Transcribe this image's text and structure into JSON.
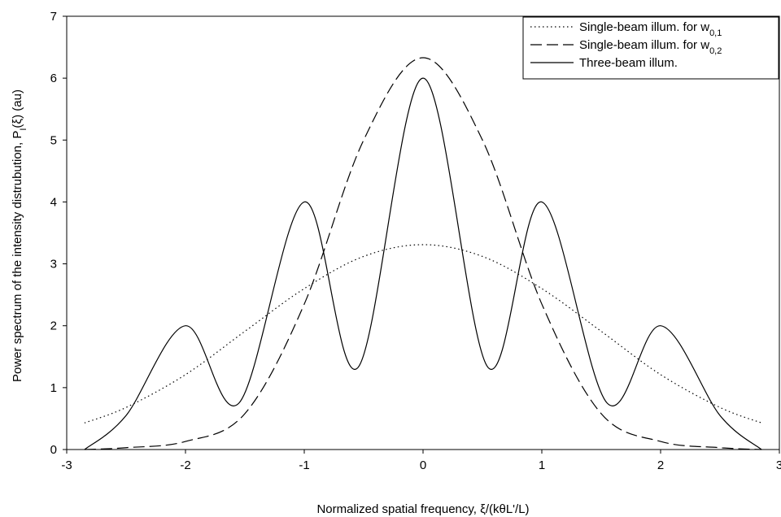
{
  "chart_data": {
    "type": "line",
    "title": "",
    "xlabel": "Normalized spatial frequency, ξ/(kθL'/L)",
    "ylabel": "Power spectrum of the intensity distrubution, P_I(ξ) (au)",
    "xlim": [
      -3,
      3
    ],
    "ylim": [
      0,
      7
    ],
    "xticks": [
      "-3",
      "-2",
      "-1",
      "0",
      "1",
      "2",
      "3"
    ],
    "yticks": [
      "0",
      "1",
      "2",
      "3",
      "4",
      "5",
      "6",
      "7"
    ],
    "grid": false,
    "legend": "top-right",
    "legend_entries": [
      {
        "main": "Single-beam illum. for w",
        "sub": "0,1"
      },
      {
        "main": "Single-beam illum. for w",
        "sub": "0,2"
      },
      {
        "main": "Three-beam illum.",
        "sub": ""
      }
    ],
    "series": [
      {
        "name": "Single-beam illum. for w0,1",
        "style": "dotted",
        "x": [
          -2.85,
          -2.5,
          -2.0,
          -1.5,
          -1.0,
          -0.5,
          0.0,
          0.5,
          1.0,
          1.5,
          2.0,
          2.5,
          2.85
        ],
        "y": [
          0.43,
          0.68,
          1.21,
          1.91,
          2.6,
          3.12,
          3.31,
          3.12,
          2.6,
          1.91,
          1.21,
          0.68,
          0.43
        ]
      },
      {
        "name": "Single-beam illum. for w0,2",
        "style": "dashed",
        "x": [
          -2.85,
          -2.5,
          -2.0,
          -1.5,
          -1.0,
          -0.5,
          0.0,
          0.5,
          1.0,
          1.5,
          2.0,
          2.5,
          2.85
        ],
        "y": [
          0.0,
          0.03,
          0.13,
          0.58,
          2.35,
          5.0,
          6.33,
          5.0,
          2.35,
          0.58,
          0.13,
          0.03,
          0.0
        ]
      },
      {
        "name": "Three-beam illum.",
        "style": "solid",
        "x": [
          -2.85,
          -2.5,
          -2.0,
          -1.55,
          -1.0,
          -0.55,
          0.0,
          0.55,
          1.0,
          1.55,
          2.0,
          2.5,
          2.85
        ],
        "y": [
          0.0,
          0.55,
          2.0,
          0.75,
          4.0,
          1.32,
          6.0,
          1.32,
          4.0,
          0.75,
          2.0,
          0.55,
          0.0
        ]
      }
    ]
  }
}
